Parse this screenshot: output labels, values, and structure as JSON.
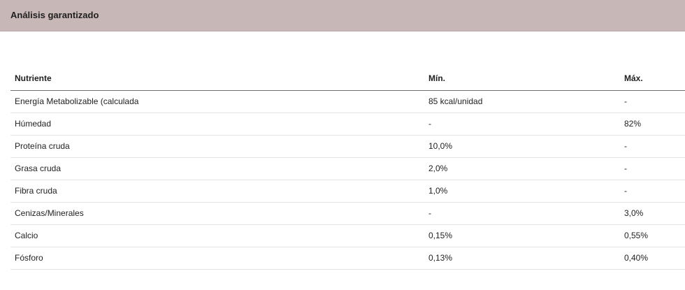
{
  "header": {
    "title": "Análisis garantizado"
  },
  "table": {
    "columns": [
      "Nutriente",
      "Mín.",
      "Máx."
    ],
    "rows": [
      {
        "nutrient": "Energía Metabolizable (calculada",
        "min": "85 kcal/unidad",
        "max": "-"
      },
      {
        "nutrient": "Húmedad",
        "min": "-",
        "max": "82%"
      },
      {
        "nutrient": "Proteína cruda",
        "min": "10,0%",
        "max": "-"
      },
      {
        "nutrient": "Grasa cruda",
        "min": "2,0%",
        "max": "-"
      },
      {
        "nutrient": "Fibra cruda",
        "min": "1,0%",
        "max": "-"
      },
      {
        "nutrient": "Cenizas/Minerales",
        "min": "-",
        "max": "3,0%"
      },
      {
        "nutrient": "Calcio",
        "min": "0,15%",
        "max": "0,55%"
      },
      {
        "nutrient": "Fósforo",
        "min": "0,13%",
        "max": "0,40%"
      }
    ]
  },
  "colors": {
    "header_bg": "#c7b7b6",
    "row_border": "#e4e4e4",
    "header_border": "#6f6f6f"
  }
}
